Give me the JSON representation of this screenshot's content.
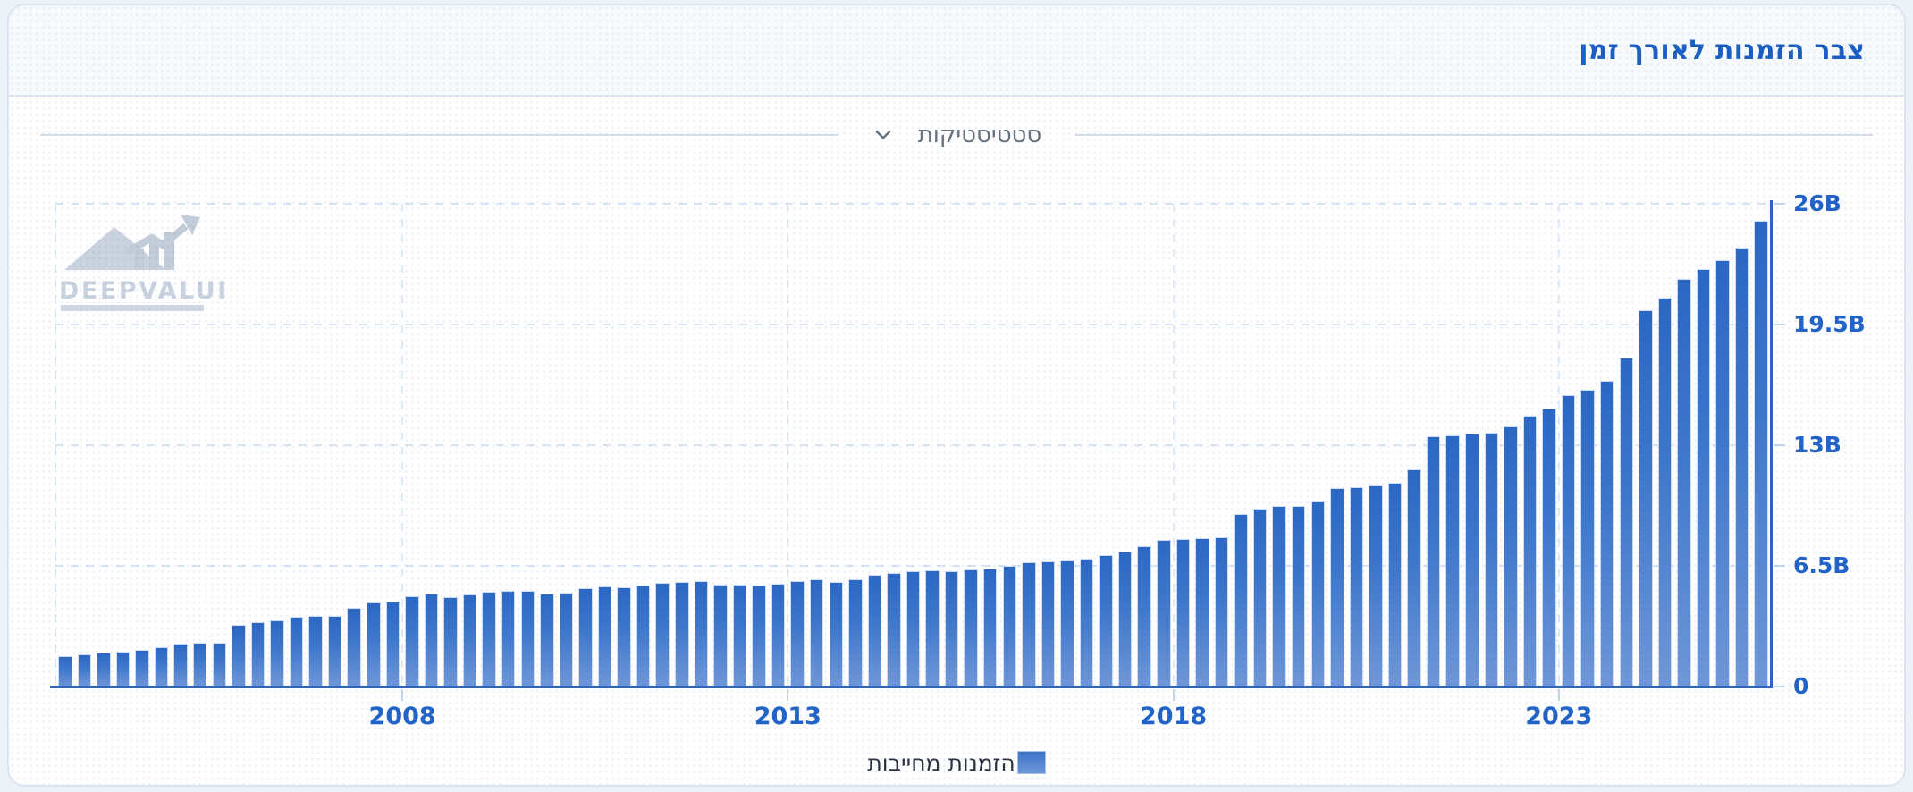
{
  "header": {
    "title": "צבר הזמנות לאורך זמן"
  },
  "stats_toggle": {
    "label": "סטטיסטיקות"
  },
  "watermark": {
    "brand": "DEEPVALUE"
  },
  "legend": {
    "items": [
      {
        "label": "הזמנות מחייבות",
        "color": "#3b74ca"
      }
    ]
  },
  "chart_data": {
    "type": "bar",
    "title": "צבר הזמנות לאורך זמן",
    "series_name": "הזמנות מחייבות",
    "unit": "B",
    "interval": "quarter",
    "x_start": "2003-Q3",
    "x_end": "2025-Q3",
    "ylim": [
      0,
      26
    ],
    "grid": true,
    "legend_position": "bottom-center",
    "y_ticks": [
      {
        "label": "0",
        "value": 0
      },
      {
        "label": "6.5B",
        "value": 6.5
      },
      {
        "label": "13B",
        "value": 13
      },
      {
        "label": "19.5B",
        "value": 19.5
      },
      {
        "label": "26B",
        "value": 26
      }
    ],
    "x_ticks": [
      {
        "label": "2008",
        "before_bar": 19
      },
      {
        "label": "2013",
        "before_bar": 39
      },
      {
        "label": "2018",
        "before_bar": 59
      },
      {
        "label": "2023",
        "before_bar": 79
      }
    ],
    "values": [
      1.65,
      1.73,
      1.82,
      1.9,
      1.97,
      2.12,
      2.33,
      2.37,
      2.37,
      3.31,
      3.47,
      3.58,
      3.76,
      3.79,
      3.79,
      4.24,
      4.51,
      4.59,
      4.87,
      5.03,
      4.8,
      4.96,
      5.11,
      5.16,
      5.15,
      5.01,
      5.07,
      5.32,
      5.39,
      5.36,
      5.44,
      5.6,
      5.65,
      5.68,
      5.49,
      5.49,
      5.44,
      5.55,
      5.7,
      5.8,
      5.65,
      5.78,
      6.0,
      6.12,
      6.19,
      6.26,
      6.22,
      6.29,
      6.35,
      6.48,
      6.7,
      6.74,
      6.77,
      6.87,
      7.06,
      7.28,
      7.57,
      7.9,
      7.96,
      8.01,
      8.05,
      9.29,
      9.58,
      9.72,
      9.73,
      9.97,
      10.7,
      10.72,
      10.82,
      10.98,
      11.7,
      13.5,
      13.54,
      13.62,
      13.67,
      14.02,
      14.59,
      14.99,
      15.71,
      15.98,
      16.46,
      17.72,
      20.28,
      20.96,
      21.97,
      22.48,
      22.96,
      23.65,
      25.1
    ],
    "colors": {
      "bar_top": "#2b67c4",
      "bar_bottom": "#7097d8",
      "axis": "#2766c5",
      "axis_labels": "#2263c7",
      "gridline": "#d9e5f6",
      "title": "#1b5ec3"
    }
  }
}
